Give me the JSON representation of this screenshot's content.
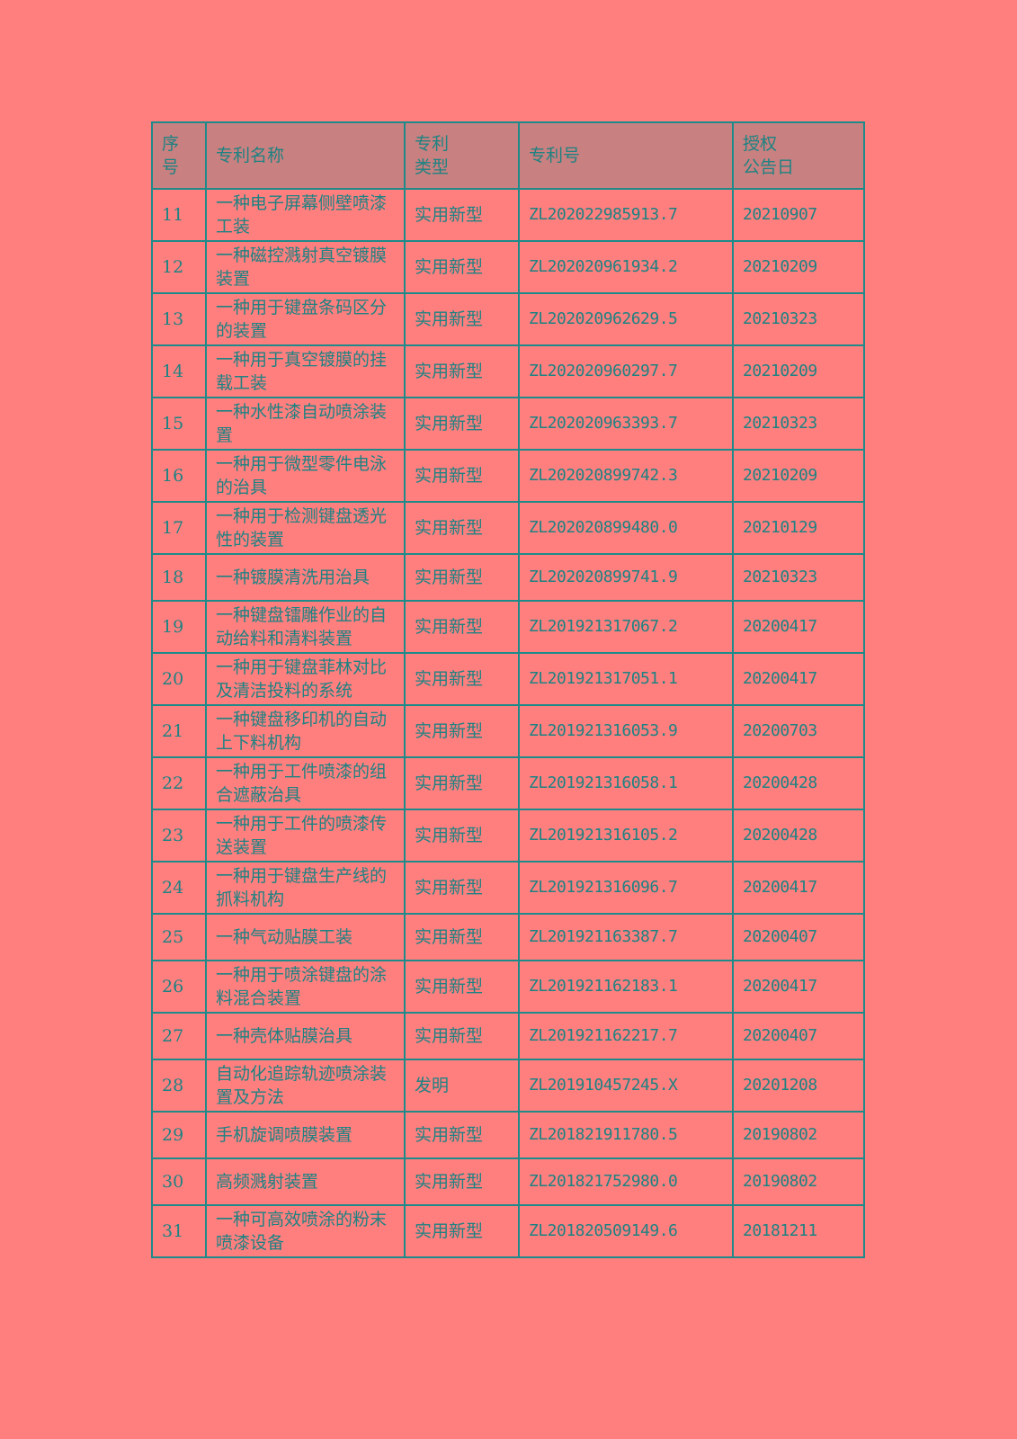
{
  "table": {
    "headers": [
      "序\n号",
      "专利名称",
      "专利\n类型",
      "专利号",
      "授权\n公告日"
    ],
    "rows": [
      {
        "no": "11",
        "name": "一种电子屏幕侧壁喷漆工装",
        "type": "实用新型",
        "id": "ZL202022985913.7",
        "date": "20210907",
        "lines": 2
      },
      {
        "no": "12",
        "name": "一种磁控溅射真空镀膜装置",
        "type": "实用新型",
        "id": "ZL202020961934.2",
        "date": "20210209",
        "lines": 2
      },
      {
        "no": "13",
        "name": "一种用于键盘条码区分的装置",
        "type": "实用新型",
        "id": "ZL202020962629.5",
        "date": "20210323",
        "lines": 2
      },
      {
        "no": "14",
        "name": "一种用于真空镀膜的挂载工装",
        "type": "实用新型",
        "id": "ZL202020960297.7",
        "date": "20210209",
        "lines": 2
      },
      {
        "no": "15",
        "name": "一种水性漆自动喷涂装置",
        "type": "实用新型",
        "id": "ZL202020963393.7",
        "date": "20210323",
        "lines": 2
      },
      {
        "no": "16",
        "name": "一种用于微型零件电泳的治具",
        "type": "实用新型",
        "id": "ZL202020899742.3",
        "date": "20210209",
        "lines": 2
      },
      {
        "no": "17",
        "name": "一种用于检测键盘透光性的装置",
        "type": "实用新型",
        "id": "ZL202020899480.0",
        "date": "20210129",
        "lines": 2
      },
      {
        "no": "18",
        "name": "一种镀膜清洗用治具",
        "type": "实用新型",
        "id": "ZL202020899741.9",
        "date": "20210323",
        "lines": 1
      },
      {
        "no": "19",
        "name": "一种键盘镭雕作业的自动给料和清料装置",
        "type": "实用新型",
        "id": "ZL201921317067.2",
        "date": "20200417",
        "lines": 2
      },
      {
        "no": "20",
        "name": "一种用于键盘菲林对比及清洁投料的系统",
        "type": "实用新型",
        "id": "ZL201921317051.1",
        "date": "20200417",
        "lines": 2
      },
      {
        "no": "21",
        "name": "一种键盘移印机的自动上下料机构",
        "type": "实用新型",
        "id": "ZL201921316053.9",
        "date": "20200703",
        "lines": 2
      },
      {
        "no": "22",
        "name": "一种用于工件喷漆的组合遮蔽治具",
        "type": "实用新型",
        "id": "ZL201921316058.1",
        "date": "20200428",
        "lines": 2
      },
      {
        "no": "23",
        "name": "一种用于工件的喷漆传送装置",
        "type": "实用新型",
        "id": "ZL201921316105.2",
        "date": "20200428",
        "lines": 2
      },
      {
        "no": "24",
        "name": "一种用于键盘生产线的抓料机构",
        "type": "实用新型",
        "id": "ZL201921316096.7",
        "date": "20200417",
        "lines": 2
      },
      {
        "no": "25",
        "name": "一种气动贴膜工装",
        "type": "实用新型",
        "id": "ZL201921163387.7",
        "date": "20200407",
        "lines": 1
      },
      {
        "no": "26",
        "name": "一种用于喷涂键盘的涂料混合装置",
        "type": "实用新型",
        "id": "ZL201921162183.1",
        "date": "20200417",
        "lines": 2
      },
      {
        "no": "27",
        "name": "一种壳体贴膜治具",
        "type": "实用新型",
        "id": "ZL201921162217.7",
        "date": "20200407",
        "lines": 1
      },
      {
        "no": "28",
        "name": "自动化追踪轨迹喷涂装置及方法",
        "type": "发明",
        "id": "ZL201910457245.X",
        "date": "20201208",
        "lines": 2
      },
      {
        "no": "29",
        "name": "手机旋调喷膜装置",
        "type": "实用新型",
        "id": "ZL201821911780.5",
        "date": "20190802",
        "lines": 1
      },
      {
        "no": "30",
        "name": "高频溅射装置",
        "type": "实用新型",
        "id": "ZL201821752980.0",
        "date": "20190802",
        "lines": 1
      },
      {
        "no": "31",
        "name": "一种可高效喷涂的粉末喷漆设备",
        "type": "实用新型",
        "id": "ZL201820509149.6",
        "date": "20181211",
        "lines": 2
      }
    ]
  },
  "colors": {
    "background": "#FF7F7F",
    "header": "#C88080",
    "border": "#1E8A8A",
    "text": "#1E8282"
  }
}
